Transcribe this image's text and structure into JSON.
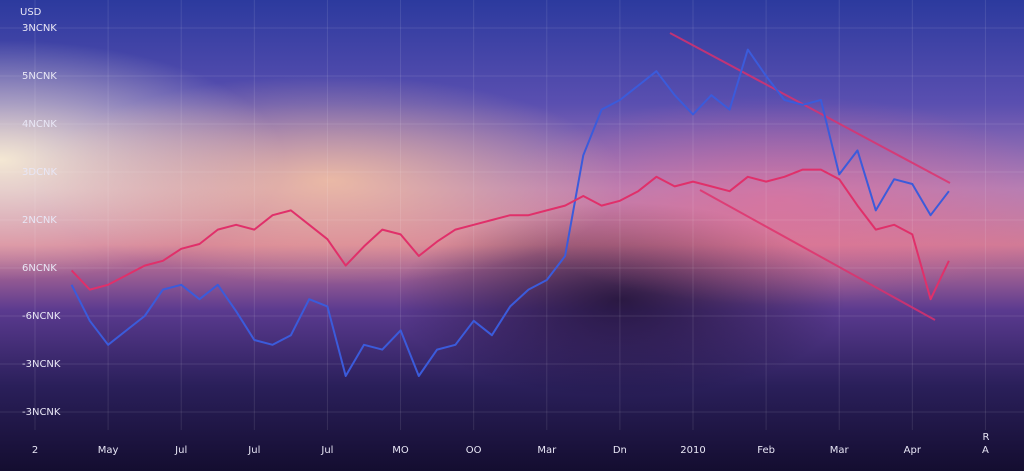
{
  "chart_data": {
    "type": "line",
    "y_label": "USD",
    "annotation": "R",
    "grid": true,
    "xlim": [
      0,
      13.5
    ],
    "ylim": [
      0,
      8
    ],
    "xticks": [
      {
        "value": 0,
        "label": "2"
      },
      {
        "value": 1,
        "label": "May"
      },
      {
        "value": 2,
        "label": "Jul"
      },
      {
        "value": 3,
        "label": "Jul"
      },
      {
        "value": 4,
        "label": "Jul"
      },
      {
        "value": 5,
        "label": "MO"
      },
      {
        "value": 6,
        "label": "OO"
      },
      {
        "value": 7,
        "label": "Mar"
      },
      {
        "value": 8,
        "label": "Dn"
      },
      {
        "value": 9,
        "label": "2010"
      },
      {
        "value": 10,
        "label": "Feb"
      },
      {
        "value": 11,
        "label": "Mar"
      },
      {
        "value": 12,
        "label": "Apr"
      },
      {
        "value": 13,
        "label": "A"
      }
    ],
    "yticks": [
      {
        "value": 0,
        "label": "-3NCNK"
      },
      {
        "value": 1,
        "label": "-3NCNK"
      },
      {
        "value": 2,
        "label": "-6NCNK"
      },
      {
        "value": 3,
        "label": "6NCNK"
      },
      {
        "value": 4,
        "label": "2NCNK"
      },
      {
        "value": 5,
        "label": "3DCNK"
      },
      {
        "value": 6,
        "label": "4NCNK"
      },
      {
        "value": 7,
        "label": "5NCNK"
      },
      {
        "value": 8,
        "label": "3NCNK"
      }
    ],
    "x": [
      0.5,
      0.75,
      1.0,
      1.25,
      1.5,
      1.75,
      2.0,
      2.25,
      2.5,
      2.75,
      3.0,
      3.25,
      3.5,
      3.75,
      4.0,
      4.25,
      4.5,
      4.75,
      5.0,
      5.25,
      5.5,
      5.75,
      6.0,
      6.25,
      6.5,
      6.75,
      7.0,
      7.25,
      7.5,
      7.75,
      8.0,
      8.25,
      8.5,
      8.75,
      9.0,
      9.25,
      9.5,
      9.75,
      10.0,
      10.25,
      10.5,
      10.75,
      11.0,
      11.25,
      11.5,
      11.75,
      12.0,
      12.25,
      12.5
    ],
    "series": [
      {
        "color": "#3b5bdb",
        "values": [
          2.65,
          1.9,
          1.4,
          1.7,
          2.0,
          2.55,
          2.65,
          2.35,
          2.65,
          2.1,
          1.5,
          1.4,
          1.6,
          2.35,
          2.2,
          0.75,
          1.4,
          1.3,
          1.7,
          0.75,
          1.3,
          1.4,
          1.9,
          1.6,
          2.2,
          2.55,
          2.75,
          3.25,
          5.35,
          6.3,
          6.5,
          6.8,
          7.1,
          6.6,
          6.2,
          6.6,
          6.3,
          7.55,
          7.0,
          6.5,
          6.4,
          6.5,
          4.95,
          5.45,
          4.2,
          4.85,
          4.75,
          4.1,
          4.6
        ]
      },
      {
        "color": "#e0306a",
        "values": [
          2.95,
          2.55,
          2.65,
          2.85,
          3.05,
          3.15,
          3.4,
          3.5,
          3.8,
          3.9,
          3.8,
          4.1,
          4.2,
          3.9,
          3.6,
          3.05,
          3.45,
          3.8,
          3.7,
          3.25,
          3.55,
          3.8,
          3.9,
          4.0,
          4.1,
          4.1,
          4.2,
          4.3,
          4.5,
          4.3,
          4.4,
          4.6,
          4.9,
          4.7,
          4.8,
          4.7,
          4.6,
          4.9,
          4.8,
          4.9,
          5.05,
          5.05,
          4.85,
          4.3,
          3.8,
          3.9,
          3.7,
          2.35,
          3.15
        ]
      }
    ]
  }
}
